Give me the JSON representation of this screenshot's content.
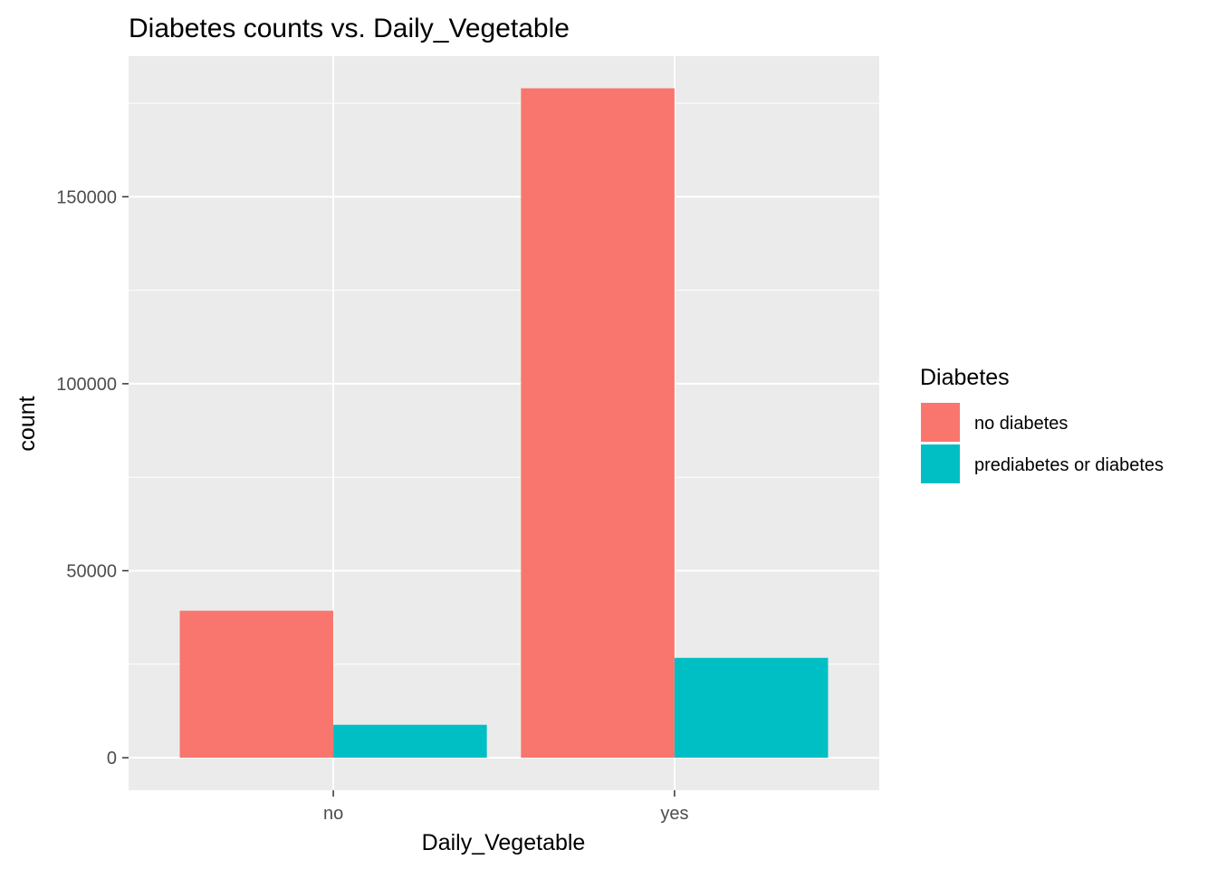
{
  "chart_data": {
    "type": "bar",
    "title": "Diabetes counts vs. Daily_Vegetable",
    "xlabel": "Daily_Vegetable",
    "ylabel": "count",
    "categories": [
      "no",
      "yes"
    ],
    "series": [
      {
        "name": "no diabetes",
        "color": "#F8766D",
        "values": [
          39300,
          179000
        ]
      },
      {
        "name": "prediabetes or diabetes",
        "color": "#00BFC4",
        "values": [
          8800,
          26700
        ]
      }
    ],
    "ylim": [
      -8700,
      187600
    ],
    "yticks": [
      0,
      50000,
      100000,
      150000
    ],
    "ytick_labels": [
      "0",
      "50000",
      "100000",
      "150000"
    ],
    "grid": true,
    "legend": {
      "title": "Diabetes",
      "position": "right"
    },
    "panel_background": "#EBEBEB",
    "grid_color": "#FFFFFF"
  }
}
